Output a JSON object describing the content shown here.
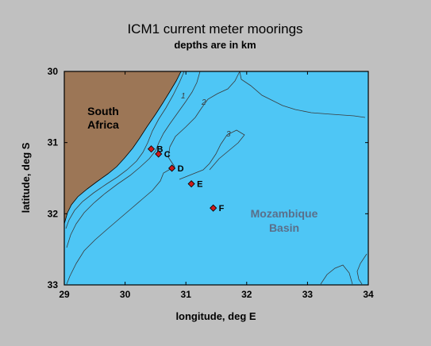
{
  "figure": {
    "title": "ICM1 current meter moorings",
    "subtitle": "depths are in km",
    "xlabel": "longitude, deg E",
    "ylabel": "latitude, deg S"
  },
  "map": {
    "lon_range": [
      29,
      34
    ],
    "lat_range": [
      30,
      33
    ],
    "lon_ticks": [
      "29",
      "30",
      "31",
      "32",
      "33",
      "34"
    ],
    "lat_ticks": [
      "30",
      "31",
      "32",
      "33"
    ],
    "colors": {
      "ocean": "#4ec6f5",
      "land": "#9c7656",
      "mooring": "#cc1b1b",
      "background": "#c0c0c0"
    },
    "labels": {
      "land": [
        "South",
        "Africa"
      ],
      "basin": [
        "Mozambique",
        "Basin"
      ]
    },
    "contour_labels": [
      "1",
      "2",
      "3"
    ],
    "moorings": [
      {
        "name": "B",
        "lon": 30.43,
        "lat": 31.09
      },
      {
        "name": "C",
        "lon": 30.55,
        "lat": 31.16
      },
      {
        "name": "D",
        "lon": 30.77,
        "lat": 31.36
      },
      {
        "name": "E",
        "lon": 31.09,
        "lat": 31.58
      },
      {
        "name": "F",
        "lon": 31.45,
        "lat": 31.92
      }
    ]
  }
}
